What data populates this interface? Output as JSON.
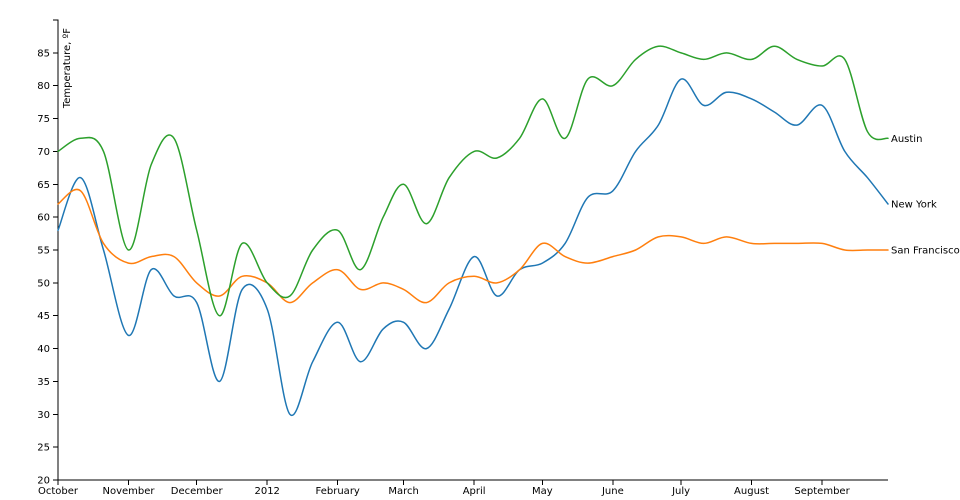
{
  "chart_data": {
    "type": "line",
    "title": "",
    "xlabel": "",
    "ylabel": "Temperature, ºF",
    "ylim": [
      20,
      90
    ],
    "yticks": [
      20,
      25,
      30,
      35,
      40,
      45,
      50,
      55,
      60,
      65,
      70,
      75,
      80,
      85
    ],
    "xlim": [
      "2011-10-01",
      "2012-09-30"
    ],
    "xticks": [
      {
        "date": "2011-10-01",
        "label": "October"
      },
      {
        "date": "2011-11-01",
        "label": "November"
      },
      {
        "date": "2011-12-01",
        "label": "December"
      },
      {
        "date": "2012-01-01",
        "label": "2012"
      },
      {
        "date": "2012-02-01",
        "label": "February"
      },
      {
        "date": "2012-03-01",
        "label": "March"
      },
      {
        "date": "2012-04-01",
        "label": "April"
      },
      {
        "date": "2012-05-01",
        "label": "May"
      },
      {
        "date": "2012-06-01",
        "label": "June"
      },
      {
        "date": "2012-07-01",
        "label": "July"
      },
      {
        "date": "2012-08-01",
        "label": "August"
      },
      {
        "date": "2012-09-01",
        "label": "September"
      }
    ],
    "legend_placement": "inline at line ends",
    "grid": false,
    "x": [
      "2011-10-01",
      "2011-10-11",
      "2011-10-21",
      "2011-11-01",
      "2011-11-11",
      "2011-11-21",
      "2011-12-01",
      "2011-12-11",
      "2011-12-21",
      "2012-01-01",
      "2012-01-11",
      "2012-01-21",
      "2012-02-01",
      "2012-02-11",
      "2012-02-21",
      "2012-03-01",
      "2012-03-11",
      "2012-03-21",
      "2012-04-01",
      "2012-04-11",
      "2012-04-21",
      "2012-05-01",
      "2012-05-11",
      "2012-05-21",
      "2012-06-01",
      "2012-06-11",
      "2012-06-21",
      "2012-07-01",
      "2012-07-11",
      "2012-07-21",
      "2012-08-01",
      "2012-08-11",
      "2012-08-21",
      "2012-09-01",
      "2012-09-11",
      "2012-09-21",
      "2012-09-30"
    ],
    "series": [
      {
        "name": "New York",
        "color": "#1f77b4",
        "values": [
          58,
          66,
          55,
          42,
          52,
          48,
          47,
          35,
          49,
          46,
          30,
          38,
          44,
          38,
          43,
          44,
          40,
          46,
          54,
          48,
          52,
          53,
          56,
          63,
          64,
          70,
          74,
          81,
          77,
          79,
          78,
          76,
          74,
          77,
          70,
          66,
          62
        ]
      },
      {
        "name": "San Francisco",
        "color": "#ff7f0e",
        "values": [
          62,
          64,
          56,
          53,
          54,
          54,
          50,
          48,
          51,
          50,
          47,
          50,
          52,
          49,
          50,
          49,
          47,
          50,
          51,
          50,
          52,
          56,
          54,
          53,
          54,
          55,
          57,
          57,
          56,
          57,
          56,
          56,
          56,
          56,
          55,
          55,
          55
        ]
      },
      {
        "name": "Austin",
        "color": "#2ca02c",
        "values": [
          70,
          72,
          70,
          55,
          68,
          72,
          58,
          45,
          56,
          50,
          48,
          55,
          58,
          52,
          60,
          65,
          59,
          66,
          70,
          69,
          72,
          78,
          72,
          81,
          80,
          84,
          86,
          85,
          84,
          85,
          84,
          86,
          84,
          83,
          84,
          73,
          72
        ]
      }
    ]
  }
}
